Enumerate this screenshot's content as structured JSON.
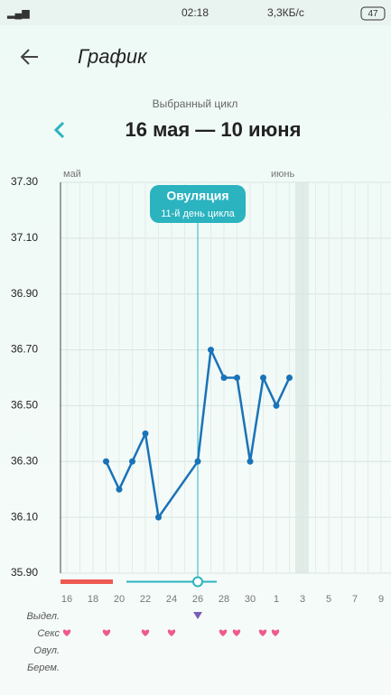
{
  "status_bar": {
    "time": "02:18",
    "speed": "3,3КБ/с",
    "battery": "47"
  },
  "header": {
    "title": "График"
  },
  "cycle": {
    "caption": "Выбранный цикл",
    "range": "16 мая — 10 июня"
  },
  "ovulation": {
    "title": "Овуляция",
    "subtitle": "11-й день цикла"
  },
  "months": [
    "май",
    "июнь"
  ],
  "rows": [
    "Выдел.",
    "Секс",
    "Овул.",
    "Берем."
  ],
  "chart_data": {
    "type": "line",
    "categories": [
      "16",
      null,
      "18",
      null,
      "20",
      null,
      "22",
      null,
      "24",
      null,
      "26",
      null,
      "28",
      null,
      "30",
      null,
      "1",
      null,
      "3",
      null,
      "5",
      null,
      "7",
      null,
      "9"
    ],
    "values": [
      null,
      null,
      null,
      36.3,
      36.2,
      36.3,
      36.4,
      36.1,
      null,
      null,
      36.3,
      36.7,
      36.6,
      36.6,
      36.3,
      36.6,
      36.5,
      36.6,
      null,
      null,
      null,
      null,
      null,
      null,
      null
    ],
    "color": "#1a73b8",
    "ylim": [
      35.9,
      37.3
    ],
    "yticks": [
      {
        "value": 35.9,
        "label": "35.90"
      },
      {
        "value": 36.1,
        "label": "36.10"
      },
      {
        "value": 36.3,
        "label": "36.30"
      },
      {
        "value": 36.5,
        "label": "36.50"
      },
      {
        "value": 36.7,
        "label": "36.70"
      },
      {
        "value": 36.9,
        "label": "36.90"
      },
      {
        "value": 37.1,
        "label": "37.10"
      },
      {
        "value": 37.3,
        "label": "37.30"
      }
    ],
    "grid": true
  }
}
